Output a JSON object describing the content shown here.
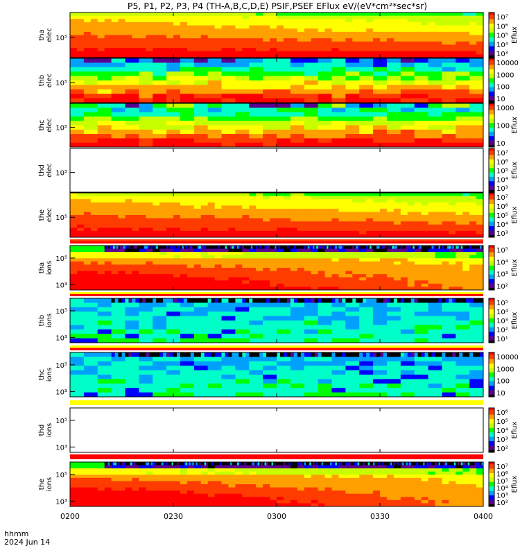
{
  "figure": {
    "title": "P5, P1, P2, P3, P4 (TH-A,B,C,D,E) PSIF,PSEF EFlux eV/(eV*cm²*sec*sr)",
    "time_label_line1": "hhmm",
    "time_label_line2": "2024 Jun 14"
  },
  "chart_data": {
    "type": "heatmap",
    "x": {
      "range": [
        "0200",
        "0400"
      ],
      "tick_labels": [
        "0200",
        "0230",
        "0300",
        "0330",
        "0400"
      ]
    },
    "panels": [
      {
        "ylabel": [
          "tha",
          "elec"
        ],
        "ytick_labels": [
          "10⁵"
        ],
        "has_data": true,
        "profile": "elec_bright",
        "colorbar": {
          "ticks": [
            "10⁷",
            "10⁶",
            "10⁵",
            "10⁴",
            "10³"
          ],
          "label": "Eflux"
        }
      },
      {
        "ylabel": [
          "thb",
          "elec"
        ],
        "ytick_labels": [
          "10⁵"
        ],
        "has_data": true,
        "profile": "elec_patchy",
        "colorbar": {
          "ticks": [
            "10000",
            "1000",
            "100",
            "10"
          ],
          "label": ""
        }
      },
      {
        "ylabel": [
          "thc",
          "elec"
        ],
        "ytick_labels": [
          "10⁵"
        ],
        "has_data": true,
        "profile": "elec_patchy_low",
        "colorbar": {
          "ticks": [
            "1000",
            "100",
            "10"
          ],
          "label": "Eflux"
        }
      },
      {
        "ylabel": [
          "thd",
          "elec"
        ],
        "ytick_labels": [
          "10⁵"
        ],
        "has_data": false,
        "profile": "empty",
        "colorbar": {
          "ticks": [
            "10⁷",
            "10⁶",
            "10⁵",
            "10⁴",
            "10³"
          ],
          "label": "Eflux"
        }
      },
      {
        "ylabel": [
          "the",
          "elec"
        ],
        "ytick_labels": [
          "10⁵"
        ],
        "has_data": true,
        "profile": "elec_bright",
        "colorbar": {
          "ticks": [
            "10⁷",
            "10⁶",
            "10⁵",
            "10⁴",
            "10³"
          ],
          "label": "Eflux"
        }
      },
      {
        "ylabel": [
          "tha",
          "ions"
        ],
        "ytick_labels": [
          "10⁵",
          "10³"
        ],
        "has_data": true,
        "profile": "ions_bright",
        "colorbar": {
          "ticks": [
            "10⁵",
            "10⁴",
            "10³",
            "10²"
          ],
          "label": "Eflux"
        }
      },
      {
        "ylabel": [
          "thb",
          "ions"
        ],
        "ytick_labels": [
          "10⁵",
          "10³"
        ],
        "has_data": true,
        "profile": "ions_patchy",
        "colorbar": {
          "ticks": [
            "10⁵",
            "10⁴",
            "10³",
            "10²",
            "10¹"
          ],
          "label": "Eflux"
        }
      },
      {
        "ylabel": [
          "thc",
          "ions"
        ],
        "ytick_labels": [
          "10⁵",
          "10³"
        ],
        "has_data": true,
        "profile": "ions_patchy",
        "colorbar": {
          "ticks": [
            "10000",
            "1000",
            "100",
            "10"
          ],
          "label": ""
        }
      },
      {
        "ylabel": [
          "thd",
          "ions"
        ],
        "ytick_labels": [
          "10⁵",
          "10³"
        ],
        "has_data": false,
        "profile": "empty",
        "colorbar": {
          "ticks": [
            "10⁶",
            "10⁵",
            "10⁴",
            "10³",
            "10²"
          ],
          "label": "Eflux"
        }
      },
      {
        "ylabel": [
          "the",
          "ions"
        ],
        "ytick_labels": [
          "10⁵",
          "10³"
        ],
        "has_data": true,
        "profile": "ions_bright",
        "colorbar": {
          "ticks": [
            "10⁷",
            "10⁶",
            "10⁵",
            "10⁴",
            "10³",
            "10²"
          ],
          "label": "Eflux"
        }
      }
    ],
    "colors": {
      "colormap": [
        "#000000",
        "#5a0090",
        "#0000ff",
        "#00a0ff",
        "#00ffc8",
        "#00ff00",
        "#c8ff00",
        "#ffff00",
        "#ffa000",
        "#ff3c00",
        "#ff0000"
      ],
      "separator": [
        "#ff0000",
        "#ffff00"
      ],
      "frame": "#000000"
    },
    "grid": false,
    "legend": "colorbars-right"
  }
}
